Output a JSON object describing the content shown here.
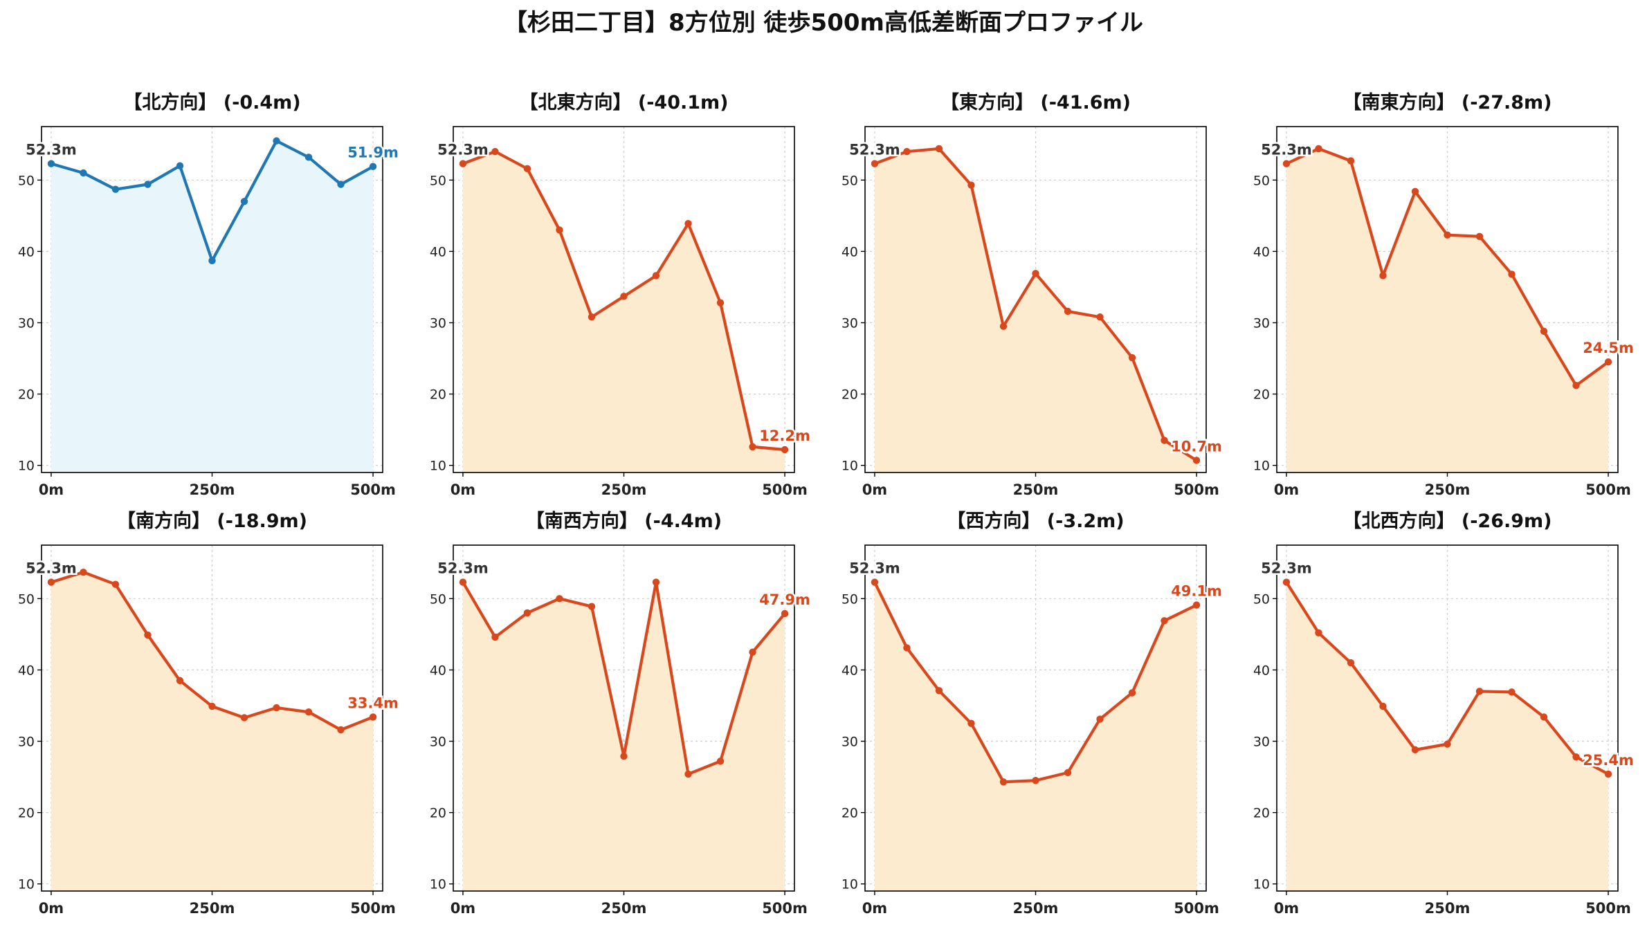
{
  "figure_title": "【杉田二丁目】8方位別 徒歩500m高低差断面プロファイル",
  "colors": {
    "north_line": "#1f77b4",
    "north_fill": "#e8f6fb",
    "down_line": "#d9481c",
    "down_fill": "#fdebd0",
    "start_label": "#333333",
    "grid": "#cccccc"
  },
  "chart_data": [
    {
      "type": "area",
      "title": "【北方向】 (-0.4m)",
      "x": [
        0,
        50,
        100,
        150,
        200,
        250,
        300,
        350,
        400,
        450,
        500
      ],
      "xticks": [
        "0m",
        "250m",
        "500m"
      ],
      "xtick_values": [
        0,
        250,
        500
      ],
      "yticks": [
        10,
        20,
        30,
        40,
        50
      ],
      "ylim": [
        9,
        57.5
      ],
      "xlim": [
        -15,
        515
      ],
      "grid": true,
      "values": [
        52.3,
        51.0,
        48.7,
        49.4,
        52.0,
        38.7,
        47.0,
        55.5,
        53.2,
        49.4,
        51.9
      ],
      "start_label": "52.3m",
      "end_label": "51.9m",
      "color_scheme": "north"
    },
    {
      "type": "area",
      "title": "【北東方向】 (-40.1m)",
      "x": [
        0,
        50,
        100,
        150,
        200,
        250,
        300,
        350,
        400,
        450,
        500
      ],
      "xticks": [
        "0m",
        "250m",
        "500m"
      ],
      "xtick_values": [
        0,
        250,
        500
      ],
      "yticks": [
        10,
        20,
        30,
        40,
        50
      ],
      "ylim": [
        9,
        57.5
      ],
      "xlim": [
        -15,
        515
      ],
      "grid": true,
      "values": [
        52.3,
        54.0,
        51.6,
        43.0,
        30.8,
        33.7,
        36.6,
        43.9,
        32.8,
        12.6,
        12.2
      ],
      "start_label": "52.3m",
      "end_label": "12.2m",
      "color_scheme": "down"
    },
    {
      "type": "area",
      "title": "【東方向】 (-41.6m)",
      "x": [
        0,
        50,
        100,
        150,
        200,
        250,
        300,
        350,
        400,
        450,
        500
      ],
      "xticks": [
        "0m",
        "250m",
        "500m"
      ],
      "xtick_values": [
        0,
        250,
        500
      ],
      "yticks": [
        10,
        20,
        30,
        40,
        50
      ],
      "ylim": [
        9,
        57.5
      ],
      "xlim": [
        -15,
        515
      ],
      "grid": true,
      "values": [
        52.3,
        54.0,
        54.4,
        49.3,
        29.5,
        36.9,
        31.6,
        30.8,
        25.1,
        13.5,
        10.7
      ],
      "start_label": "52.3m",
      "end_label": "10.7m",
      "color_scheme": "down"
    },
    {
      "type": "area",
      "title": "【南東方向】 (-27.8m)",
      "x": [
        0,
        50,
        100,
        150,
        200,
        250,
        300,
        350,
        400,
        450,
        500
      ],
      "xticks": [
        "0m",
        "250m",
        "500m"
      ],
      "xtick_values": [
        0,
        250,
        500
      ],
      "yticks": [
        10,
        20,
        30,
        40,
        50
      ],
      "ylim": [
        9,
        57.5
      ],
      "xlim": [
        -15,
        515
      ],
      "grid": true,
      "values": [
        52.3,
        54.4,
        52.7,
        36.6,
        48.4,
        42.3,
        42.1,
        36.8,
        28.8,
        21.2,
        24.5
      ],
      "start_label": "52.3m",
      "end_label": "24.5m",
      "color_scheme": "down"
    },
    {
      "type": "area",
      "title": "【南方向】 (-18.9m)",
      "x": [
        0,
        50,
        100,
        150,
        200,
        250,
        300,
        350,
        400,
        450,
        500
      ],
      "xticks": [
        "0m",
        "250m",
        "500m"
      ],
      "xtick_values": [
        0,
        250,
        500
      ],
      "yticks": [
        10,
        20,
        30,
        40,
        50
      ],
      "ylim": [
        9,
        57.5
      ],
      "xlim": [
        -15,
        515
      ],
      "grid": true,
      "values": [
        52.3,
        53.7,
        52.0,
        44.9,
        38.5,
        34.9,
        33.3,
        34.7,
        34.1,
        31.6,
        33.4
      ],
      "start_label": "52.3m",
      "end_label": "33.4m",
      "color_scheme": "down"
    },
    {
      "type": "area",
      "title": "【南西方向】 (-4.4m)",
      "x": [
        0,
        50,
        100,
        150,
        200,
        250,
        300,
        350,
        400,
        450,
        500
      ],
      "xticks": [
        "0m",
        "250m",
        "500m"
      ],
      "xtick_values": [
        0,
        250,
        500
      ],
      "yticks": [
        10,
        20,
        30,
        40,
        50
      ],
      "ylim": [
        9,
        57.5
      ],
      "xlim": [
        -15,
        515
      ],
      "grid": true,
      "values": [
        52.3,
        44.6,
        48.0,
        50.0,
        48.9,
        27.9,
        52.3,
        25.4,
        27.2,
        42.5,
        47.9
      ],
      "start_label": "52.3m",
      "end_label": "47.9m",
      "color_scheme": "down"
    },
    {
      "type": "area",
      "title": "【西方向】 (-3.2m)",
      "x": [
        0,
        50,
        100,
        150,
        200,
        250,
        300,
        350,
        400,
        450,
        500
      ],
      "xticks": [
        "0m",
        "250m",
        "500m"
      ],
      "xtick_values": [
        0,
        250,
        500
      ],
      "yticks": [
        10,
        20,
        30,
        40,
        50
      ],
      "ylim": [
        9,
        57.5
      ],
      "xlim": [
        -15,
        515
      ],
      "grid": true,
      "values": [
        52.3,
        43.1,
        37.1,
        32.5,
        24.3,
        24.5,
        25.6,
        33.1,
        36.8,
        46.9,
        49.1
      ],
      "start_label": "52.3m",
      "end_label": "49.1m",
      "color_scheme": "down"
    },
    {
      "type": "area",
      "title": "【北西方向】 (-26.9m)",
      "x": [
        0,
        50,
        100,
        150,
        200,
        250,
        300,
        350,
        400,
        450,
        500
      ],
      "xticks": [
        "0m",
        "250m",
        "500m"
      ],
      "xtick_values": [
        0,
        250,
        500
      ],
      "yticks": [
        10,
        20,
        30,
        40,
        50
      ],
      "ylim": [
        9,
        57.5
      ],
      "xlim": [
        -15,
        515
      ],
      "grid": true,
      "values": [
        52.3,
        45.2,
        41.0,
        34.9,
        28.8,
        29.6,
        37.0,
        36.9,
        33.4,
        27.8,
        25.4
      ],
      "start_label": "52.3m",
      "end_label": "25.4m",
      "color_scheme": "down"
    }
  ]
}
